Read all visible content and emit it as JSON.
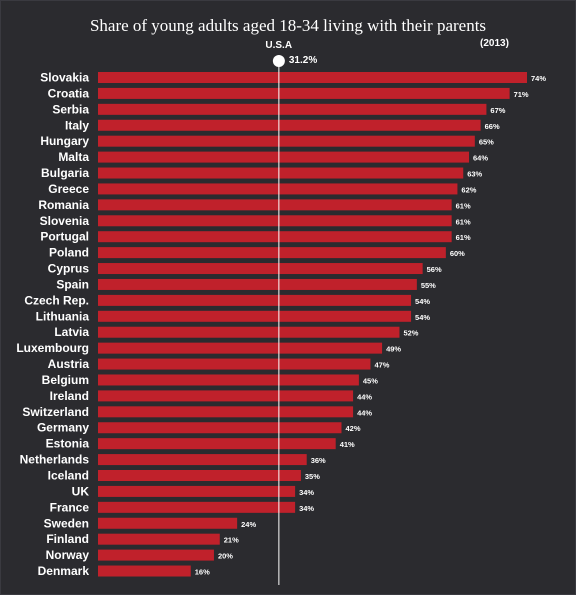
{
  "chart_data": {
    "type": "bar",
    "orientation": "horizontal",
    "title": "Share of young adults aged 18-34 living with their parents",
    "subtitle": "(2013)",
    "unit": "%",
    "reference_line": {
      "label": "U.S.A",
      "value": 31.2,
      "value_label": "31.2%"
    },
    "categories": [
      "Slovakia",
      "Croatia",
      "Serbia",
      "Italy",
      "Hungary",
      "Malta",
      "Bulgaria",
      "Greece",
      "Romania",
      "Slovenia",
      "Portugal",
      "Poland",
      "Cyprus",
      "Spain",
      "Czech Rep.",
      "Lithuania",
      "Latvia",
      "Luxembourg",
      "Austria",
      "Belgium",
      "Ireland",
      "Switzerland",
      "Germany",
      "Estonia",
      "Netherlands",
      "Iceland",
      "UK",
      "France",
      "Sweden",
      "Finland",
      "Norway",
      "Denmark"
    ],
    "values": [
      74,
      71,
      67,
      66,
      65,
      64,
      63,
      62,
      61,
      61,
      61,
      60,
      56,
      55,
      54,
      54,
      52,
      49,
      47,
      45,
      44,
      44,
      42,
      41,
      36,
      35,
      34,
      34,
      24,
      21,
      20,
      16
    ],
    "value_labels": [
      "74%",
      "71%",
      "67%",
      "66%",
      "65%",
      "64%",
      "63%",
      "62%",
      "61%",
      "61%",
      "61%",
      "60%",
      "56%",
      "55%",
      "54%",
      "54%",
      "52%",
      "49%",
      "47%",
      "45%",
      "44%",
      "44%",
      "42%",
      "41%",
      "36%",
      "35%",
      "34%",
      "34%",
      "24%",
      "21%",
      "20%",
      "16%"
    ],
    "xlim": [
      0,
      74
    ],
    "bar_color": "#c0212b",
    "background_color": "#2b2b2f"
  }
}
